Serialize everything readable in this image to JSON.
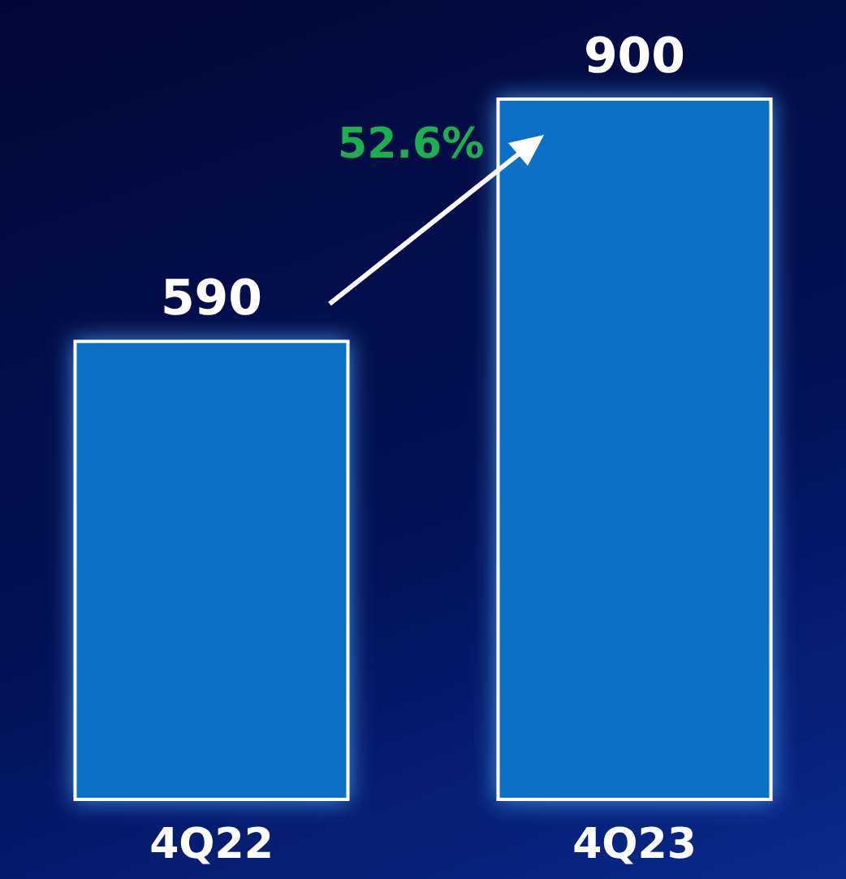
{
  "chart_data": {
    "type": "bar",
    "categories": [
      "4Q22",
      "4Q23"
    ],
    "values": [
      590,
      900
    ],
    "color": "#0b6fc7",
    "data_labels": true,
    "annotations": [
      {
        "text": "52.6%"
      }
    ]
  }
}
